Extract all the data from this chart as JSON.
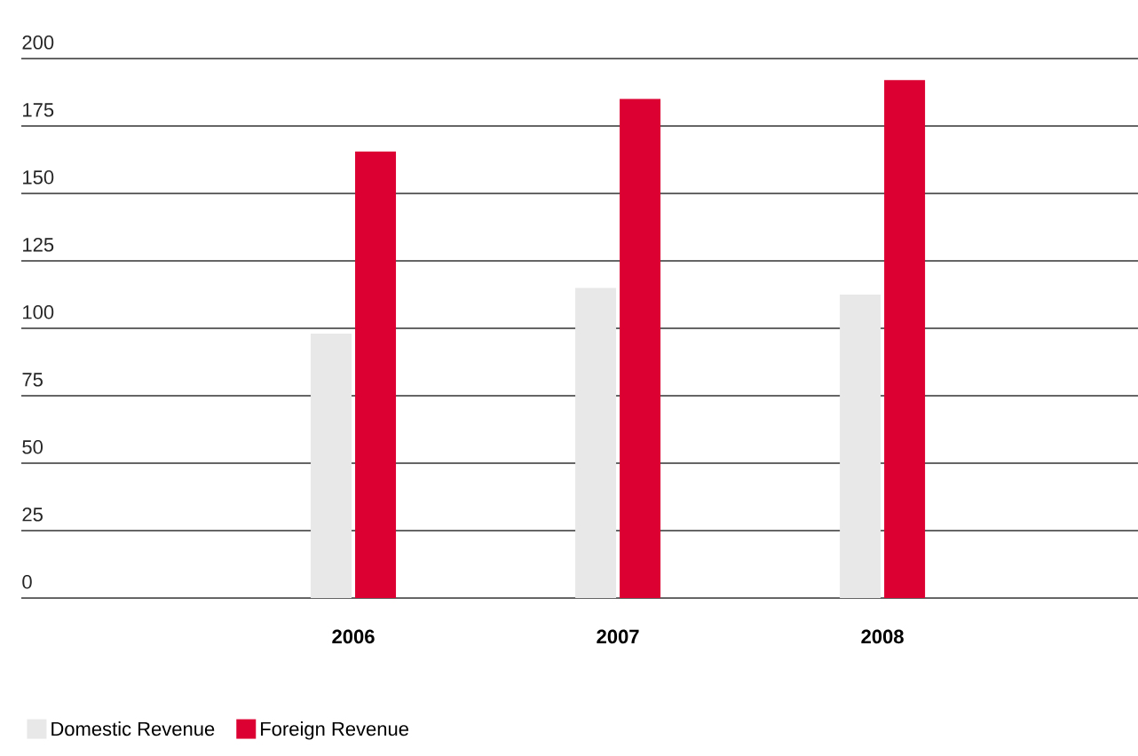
{
  "chart_data": {
    "type": "bar",
    "categories": [
      "2006",
      "2007",
      "2008"
    ],
    "series": [
      {
        "name": "Domestic Revenue",
        "color": "#e8e8e8",
        "values": [
          98,
          115,
          112.5
        ]
      },
      {
        "name": "Foreign Revenue",
        "color": "#dc0032",
        "values": [
          165.5,
          185,
          192
        ]
      }
    ],
    "ylim": [
      0,
      200
    ],
    "yticks": [
      0,
      25,
      50,
      75,
      100,
      125,
      150,
      175,
      200
    ],
    "grid": "y",
    "legend": "bottom left"
  }
}
